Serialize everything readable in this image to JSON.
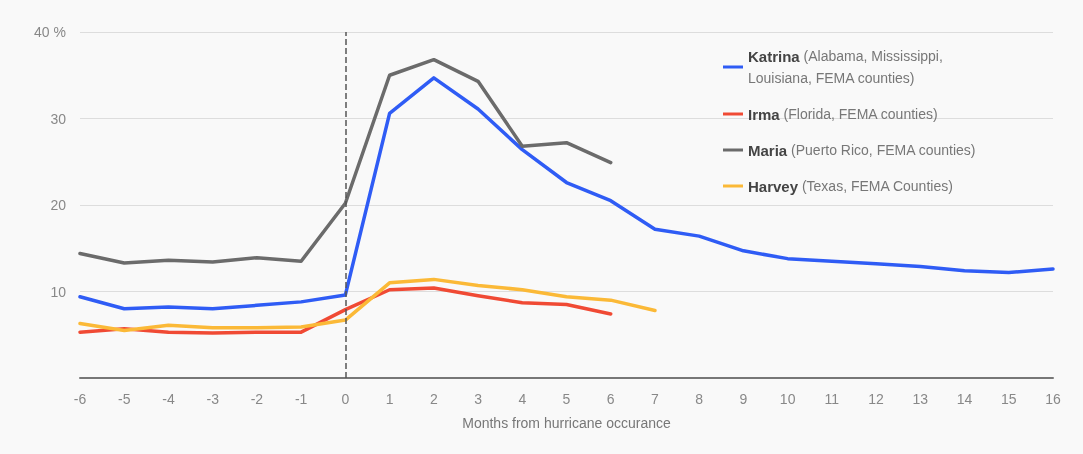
{
  "chart_data": {
    "type": "line",
    "xlabel": "Months from hurricane occurance",
    "x": [
      -6,
      -5,
      -4,
      -3,
      -2,
      -1,
      0,
      1,
      2,
      3,
      4,
      5,
      6,
      7,
      8,
      9,
      10,
      11,
      12,
      13,
      14,
      15,
      16
    ],
    "series": [
      {
        "name": "Katrina (Alabama, Mississippi, Louisiana, FEMA counties)",
        "color": "#2f5cf5",
        "values": [
          9.4,
          8.0,
          8.2,
          8.0,
          8.4,
          8.8,
          9.6,
          30.6,
          34.7,
          31.1,
          26.4,
          22.6,
          20.5,
          17.2,
          16.4,
          14.7,
          13.8,
          13.5,
          13.2,
          12.9,
          12.4,
          12.2,
          12.6
        ]
      },
      {
        "name": "Irma (Florida, FEMA counties)",
        "color": "#f04a34",
        "values": [
          5.3,
          5.7,
          5.3,
          5.2,
          5.3,
          5.3,
          7.9,
          10.2,
          10.4,
          9.5,
          8.7,
          8.5,
          7.4,
          null,
          null,
          null,
          null,
          null,
          null,
          null,
          null,
          null,
          null
        ]
      },
      {
        "name": "Maria (Puerto Rico, FEMA counties)",
        "color": "#6b6b6b",
        "values": [
          14.4,
          13.3,
          13.6,
          13.4,
          13.9,
          13.5,
          20.2,
          35.0,
          36.8,
          34.3,
          26.8,
          27.2,
          24.9,
          null,
          null,
          null,
          null,
          null,
          null,
          null,
          null,
          null,
          null
        ]
      },
      {
        "name": "Harvey (Texas, FEMA Counties)",
        "color": "#fbb937",
        "values": [
          6.3,
          5.5,
          6.1,
          5.8,
          5.8,
          5.9,
          6.7,
          11.0,
          11.4,
          10.7,
          10.2,
          9.4,
          9.0,
          7.8,
          null,
          null,
          null,
          null,
          null,
          null,
          null,
          null,
          null
        ]
      }
    ],
    "xlim": [
      -6,
      16
    ],
    "xticks": [
      -6,
      -5,
      -4,
      -3,
      -2,
      -1,
      0,
      1,
      2,
      3,
      4,
      5,
      6,
      7,
      8,
      9,
      10,
      11,
      12,
      13,
      14,
      15,
      16
    ],
    "ylim": [
      0,
      40
    ],
    "yticks": [
      10,
      20,
      30,
      {
        "value": 40,
        "label": "40 %"
      }
    ],
    "grid": "y",
    "legend": "top right",
    "marker": "none",
    "line_style": "solid",
    "ref_lines": [
      {
        "axis": "x",
        "value": 0,
        "label": null,
        "color": "#555555",
        "line_style": "dashed"
      }
    ]
  }
}
